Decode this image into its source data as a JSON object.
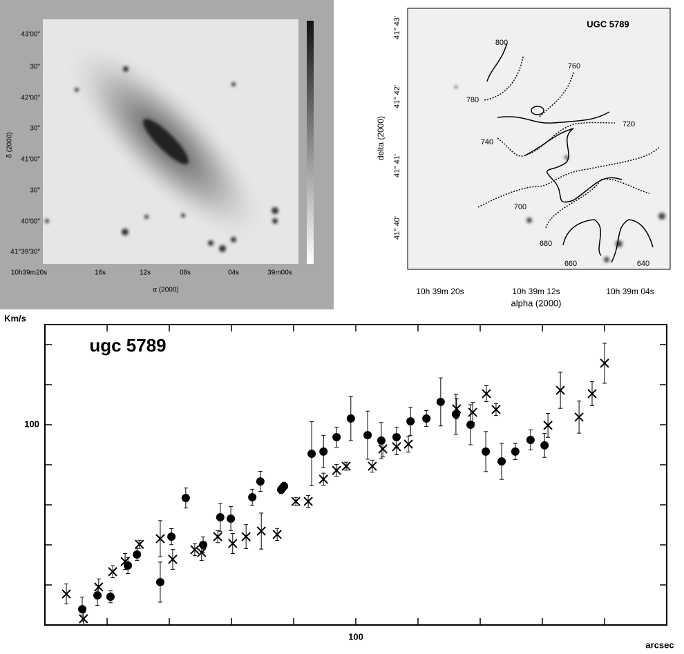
{
  "left_image": {
    "yticks": [
      "43'00\"",
      "30\"",
      "42'00\"",
      "30\"",
      "41'00\"",
      "30\"",
      "40'00\"",
      "41°39'30\""
    ],
    "xticks": [
      "10h39m20s",
      "16s",
      "12s",
      "08s",
      "04s",
      "39m00s"
    ],
    "ylabel": "δ (2000)",
    "xlabel": "α (2000)"
  },
  "right_image": {
    "title": "UGC 5789",
    "contours": [
      "800",
      "780",
      "760",
      "740",
      "720",
      "700",
      "680",
      "660",
      "640"
    ],
    "yticks": [
      "41° 43'",
      "41° 42'",
      "41° 41'",
      "41° 40'"
    ],
    "xticks": [
      "10h 39m 20s",
      "10h 39m 12s",
      "10h 39m 04s"
    ],
    "ylabel": "delta (2000)",
    "xlabel": "alpha (2000)"
  },
  "chart_data": {
    "type": "scatter",
    "title": "ugc 5789",
    "ylabel": "Km/s",
    "xlabel": "arcsec",
    "xlim": [
      0,
      200
    ],
    "ylim": [
      0,
      150
    ],
    "xticks": [
      {
        "value": 0,
        "label": null
      },
      {
        "value": 20,
        "label": null
      },
      {
        "value": 40,
        "label": null
      },
      {
        "value": 60,
        "label": null
      },
      {
        "value": 80,
        "label": null
      },
      100,
      {
        "value": 120,
        "label": null
      },
      {
        "value": 140,
        "label": null
      },
      {
        "value": 160,
        "label": null
      },
      {
        "value": 180,
        "label": null
      },
      {
        "value": 200,
        "label": null
      }
    ],
    "yticks": [
      {
        "value": 0,
        "label": null
      },
      {
        "value": 20,
        "label": null
      },
      {
        "value": 40,
        "label": null
      },
      {
        "value": 60,
        "label": null
      },
      {
        "value": 80,
        "label": null
      },
      100,
      {
        "value": 120,
        "label": null
      },
      {
        "value": 140,
        "label": null
      }
    ],
    "series": [
      {
        "marker": "dot",
        "color": "#000000",
        "x": [
          12,
          16.9,
          21.1,
          26.7,
          29.6,
          37.1,
          40.7,
          45.3,
          50.9,
          56.4,
          59.8,
          66.7,
          69.3,
          76,
          76.9,
          85.8,
          89.6,
          93.8,
          98.4,
          103.8,
          108.2,
          113.1,
          117.6,
          122.7,
          127.3,
          132.2,
          136.9,
          141.8,
          146.9,
          151.3,
          156.2,
          160.7
        ],
        "values": [
          7.9,
          14.8,
          14.1,
          29.7,
          35.2,
          21.4,
          44.1,
          63.4,
          40,
          53.8,
          53.1,
          63.8,
          71.7,
          67.6,
          69.3,
          85.5,
          86.6,
          93.8,
          103.1,
          94.8,
          92.1,
          93.8,
          101.7,
          103.1,
          111.4,
          105.2,
          100,
          86.6,
          81.7,
          86.6,
          92.4,
          89.7
        ],
        "errors": [
          6,
          5,
          3,
          4,
          3,
          10,
          4,
          5,
          4,
          7,
          6,
          4,
          5,
          2,
          2,
          16,
          8,
          5,
          11,
          12,
          9,
          5,
          7,
          4,
          12,
          10,
          10,
          10,
          9,
          4,
          5,
          6
        ]
      },
      {
        "marker": "cross",
        "color": "#000000",
        "x": [
          6.9,
          12.4,
          17.3,
          21.8,
          25.8,
          30.4,
          37.1,
          41.1,
          48.2,
          50.4,
          55.6,
          60.4,
          64.7,
          69.6,
          74.7,
          80.7,
          84.7,
          89.6,
          93.8,
          96.9,
          105.3,
          108.7,
          113.1,
          116.9,
          132.4,
          137.6,
          142,
          145.1,
          161.8,
          165.8,
          171.8,
          176,
          180
        ],
        "values": [
          15.5,
          3.1,
          19,
          26.6,
          31.7,
          40.3,
          43.1,
          32.8,
          37.6,
          36.2,
          44.1,
          40.7,
          44.1,
          46.9,
          45.2,
          61.7,
          61.7,
          72.8,
          77.2,
          79.3,
          79.3,
          87.9,
          89,
          90.3,
          107.9,
          106.2,
          115.5,
          107.6,
          99.7,
          117.2,
          103.8,
          115.5,
          130.7
        ],
        "errors": [
          5,
          3,
          4,
          3,
          4,
          2,
          9,
          5,
          3,
          4,
          3,
          5,
          6,
          9,
          3,
          2,
          3,
          3,
          3,
          2,
          3,
          4,
          4,
          4,
          5,
          5,
          4,
          3,
          6,
          9,
          8,
          6,
          10
        ]
      }
    ]
  }
}
